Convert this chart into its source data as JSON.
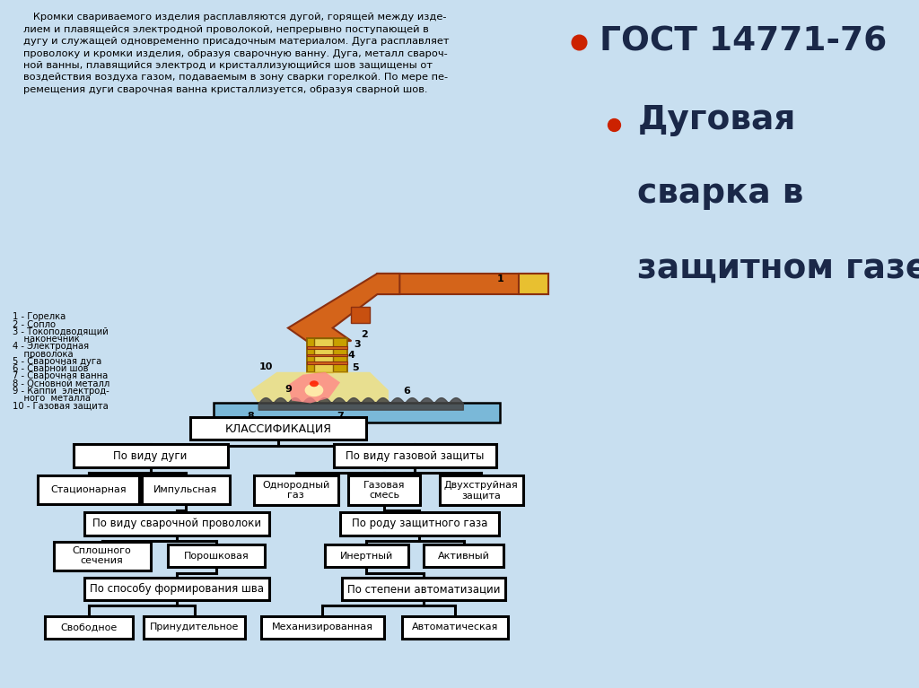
{
  "bg_color": "#c8dff0",
  "text_dark": "#1a2848",
  "bullet_red": "#cc2200",
  "bullet1": "ГОСТ 14771-76",
  "bullet2_line1": "Дуговая",
  "bullet2_line2": "сварка в",
  "bullet2_line3": "защитном газе",
  "top_para_lines": [
    "   Кромки свариваемого изделия расплавляются дугой, горящей между изде-",
    "лием и плавящейся электродной проволокой, непрерывно поступающей в",
    "дугу и служащей одновременно присадочным материалом. Дуга расплавляет",
    "проволоку и кромки изделия, образуя сварочную ванну. Дуга, металл свароч-",
    "ной ванны, плавящийся электрод и кристаллизующийся шов защищены от",
    "воздействия воздуха газом, подаваемым в зону сварки горелкой. По мере пе-",
    "ремещения дуги сварочная ванна кристаллизуется, образуя сварной шов."
  ],
  "legend_lines": [
    "1 - Горелка",
    "2 - Сопло",
    "3 - Токоподводящий",
    "    наконечник",
    "4 - Электродная",
    "    проволока",
    "5 - Сварочная дуга",
    "6 - Сварной шов",
    "7 - Сварочная ванна",
    "8 - Основной металл",
    "9 - Каппи  электрод-",
    "    ного  металла",
    "10 - Газовая защита"
  ],
  "cls_title": "КЛАССИФИКАЦИЯ",
  "cls_L1": "По виду дуги",
  "cls_R1": "По виду газовой защиты",
  "cls_b1": "Стационарная",
  "cls_b2": "Импульсная",
  "cls_b3": "Однородный\nгаз",
  "cls_b4": "Газовая\nсмесь",
  "cls_b5": "Двухструйная\nзащита",
  "cls_L2": "По виду сварочной проволоки",
  "cls_R2": "По роду защитного газа",
  "cls_b6": "Сплошного\nсечения",
  "cls_b7": "Порошковая",
  "cls_b8": "Инертный",
  "cls_b9": "Активный",
  "cls_L3": "По способу формирования шва",
  "cls_R3": "По степени автоматизации",
  "cls_b10": "Свободное",
  "cls_b11": "Принудительное",
  "cls_b12": "Механизированная",
  "cls_b13": "Автоматическая"
}
